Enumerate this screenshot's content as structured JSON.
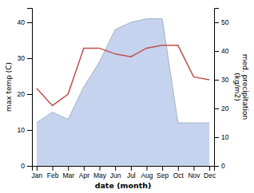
{
  "chart_data": {
    "type": "line",
    "categories": [
      "Jan",
      "Feb",
      "Mar",
      "Apr",
      "May",
      "Jun",
      "Jul",
      "Aug",
      "Sep",
      "Oct",
      "Nov",
      "Dec"
    ],
    "series": [
      {
        "type": "area",
        "color": "#c5d3ee",
        "values": [
          12,
          15,
          13,
          22,
          29,
          38,
          40,
          41,
          41,
          12,
          12,
          12
        ]
      },
      {
        "type": "line",
        "axis": "y2",
        "color": "#c0504d",
        "values": [
          27,
          21,
          25,
          41,
          41,
          39,
          38,
          41,
          42,
          42,
          31,
          30
        ]
      }
    ],
    "xlabel": "date (month)",
    "ylabel": "max temp (C)",
    "y2label": "med. precipitation\n(kg/m2)",
    "ylim": [
      0,
      44
    ],
    "yticks": [
      0,
      10,
      20,
      30,
      40
    ],
    "y2lim": [
      0,
      55
    ],
    "y2ticks": [
      0,
      10,
      20,
      30,
      40,
      50
    ]
  }
}
